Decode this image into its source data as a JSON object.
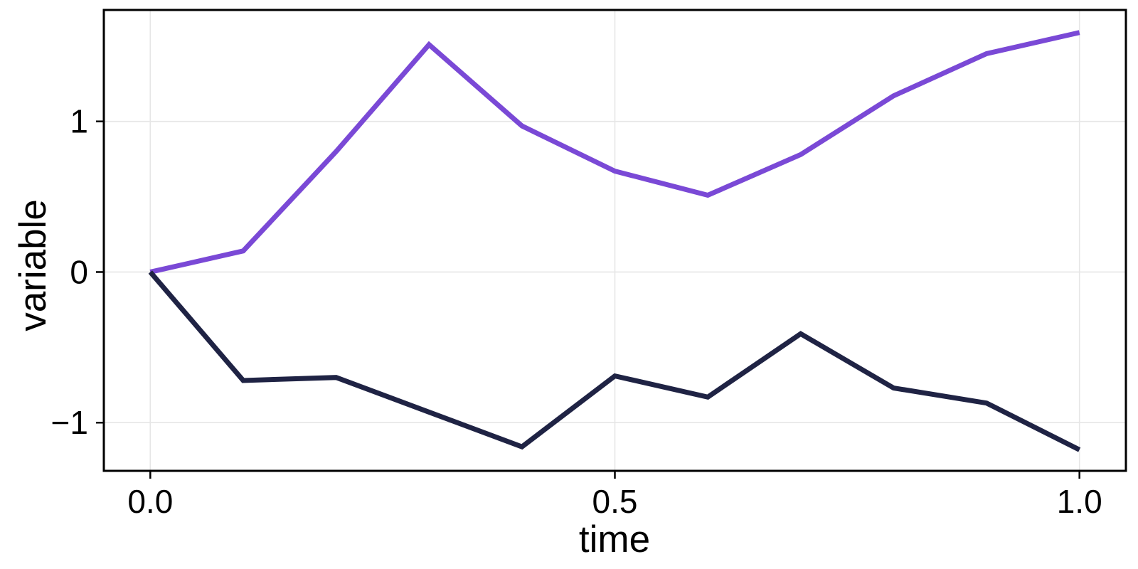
{
  "figure": {
    "background": "#ffffff"
  },
  "chart_data": {
    "type": "line",
    "title": "",
    "xlabel": "time",
    "ylabel": "variable",
    "x": [
      0.0,
      0.1,
      0.2,
      0.3,
      0.4,
      0.5,
      0.6,
      0.7,
      0.8,
      0.9,
      1.0
    ],
    "series": [
      {
        "name": "purple-series",
        "color": "#7A49D6",
        "values": [
          0.0,
          0.14,
          0.8,
          1.51,
          0.97,
          0.67,
          0.51,
          0.78,
          1.17,
          1.45,
          1.59
        ]
      },
      {
        "name": "navy-series",
        "color": "#1F2344",
        "values": [
          0.0,
          -0.72,
          -0.7,
          -0.93,
          -1.16,
          -0.69,
          -0.83,
          -0.41,
          -0.77,
          -0.87,
          -1.18
        ]
      }
    ],
    "xlim": [
      -0.05,
      1.05
    ],
    "ylim": [
      -1.32,
      1.74
    ],
    "xticks": {
      "values": [
        0.0,
        0.5,
        1.0
      ],
      "labels": [
        "0.0",
        "0.5",
        "1.0"
      ]
    },
    "yticks": {
      "values": [
        -1,
        0,
        1
      ],
      "labels": [
        "−1",
        "0",
        "1"
      ]
    },
    "grid": true,
    "legend": false,
    "style": {
      "grid_color": "#e6e6e6",
      "grid_width": 1.6,
      "axis_color": "#000000",
      "border_width": 3,
      "tick_length": 11,
      "tick_width": 2.5,
      "line_width": 7,
      "tick_label_size": 46,
      "axis_label_size": 53
    }
  }
}
